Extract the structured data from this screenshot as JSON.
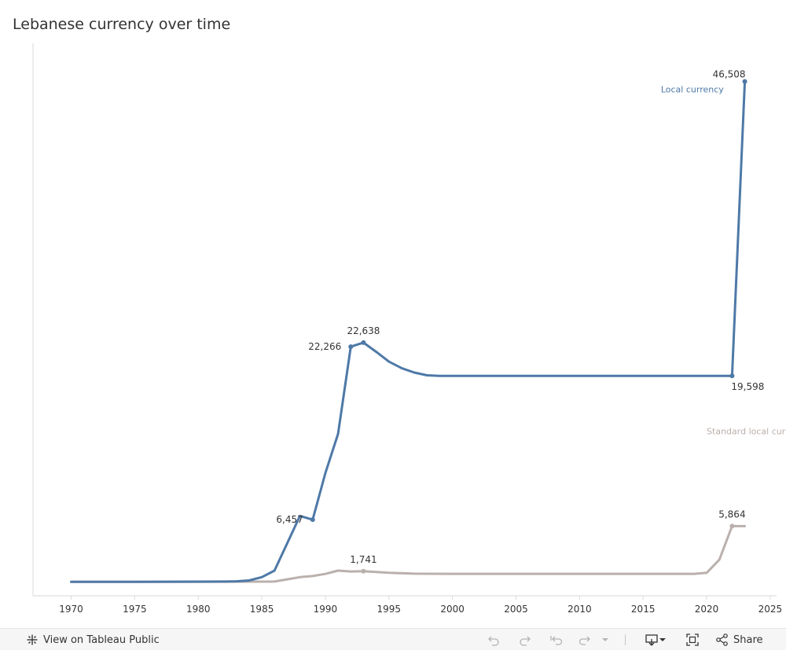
{
  "title": "Lebanese currency over time",
  "chart_data": {
    "type": "line",
    "title": "Lebanese currency over time",
    "xlabel": "",
    "ylabel": "",
    "xlim": [
      1967,
      2025.5
    ],
    "ylim": [
      -500,
      50000
    ],
    "x_ticks": [
      1970,
      1975,
      1980,
      1985,
      1990,
      1995,
      2000,
      2005,
      2010,
      2015,
      2020,
      2025
    ],
    "grid": false,
    "series": [
      {
        "name": "Local currency",
        "color": "#4e79a7",
        "label_position": [
          2016.4,
          45500
        ],
        "points": [
          [
            1970,
            780
          ],
          [
            1975,
            770
          ],
          [
            1980,
            790
          ],
          [
            1982,
            800
          ],
          [
            1983,
            820
          ],
          [
            1984,
            900
          ],
          [
            1985,
            1200
          ],
          [
            1986,
            1800
          ],
          [
            1987,
            4300
          ],
          [
            1988,
            6800
          ],
          [
            1989,
            6457
          ],
          [
            1990,
            10700
          ],
          [
            1991,
            14300
          ],
          [
            1992,
            22266
          ],
          [
            1993,
            22638
          ],
          [
            1994,
            21800
          ],
          [
            1995,
            20900
          ],
          [
            1996,
            20300
          ],
          [
            1997,
            19900
          ],
          [
            1998,
            19650
          ],
          [
            1999,
            19598
          ],
          [
            2005,
            19598
          ],
          [
            2010,
            19598
          ],
          [
            2015,
            19598
          ],
          [
            2020,
            19598
          ],
          [
            2022,
            19598
          ],
          [
            2023,
            46508
          ]
        ]
      },
      {
        "name": "Standard local currency",
        "color": "#bab0ac",
        "label_position": [
          2020,
          14250
        ],
        "points": [
          [
            1970,
            780
          ],
          [
            1975,
            775
          ],
          [
            1980,
            780
          ],
          [
            1985,
            790
          ],
          [
            1986,
            800
          ],
          [
            1987,
            1000
          ],
          [
            1988,
            1200
          ],
          [
            1989,
            1300
          ],
          [
            1990,
            1500
          ],
          [
            1991,
            1800
          ],
          [
            1992,
            1720
          ],
          [
            1993,
            1741
          ],
          [
            1994,
            1680
          ],
          [
            1995,
            1600
          ],
          [
            1996,
            1560
          ],
          [
            1997,
            1520
          ],
          [
            1998,
            1510
          ],
          [
            2000,
            1505
          ],
          [
            2005,
            1505
          ],
          [
            2010,
            1505
          ],
          [
            2015,
            1505
          ],
          [
            2019,
            1505
          ],
          [
            2020,
            1600
          ],
          [
            2021,
            2800
          ],
          [
            2022,
            5864
          ],
          [
            2023,
            5864
          ]
        ]
      }
    ],
    "annotations": [
      {
        "series": 0,
        "x": 1989,
        "y": 6457,
        "label": "6,457",
        "anchor": "left"
      },
      {
        "series": 0,
        "x": 1992,
        "y": 22266,
        "label": "22,266",
        "anchor": "left"
      },
      {
        "series": 0,
        "x": 1993,
        "y": 22638,
        "label": "22,638",
        "anchor": "above"
      },
      {
        "series": 0,
        "x": 2022,
        "y": 19598,
        "label": "19,598",
        "anchor": "below"
      },
      {
        "series": 0,
        "x": 2023,
        "y": 46508,
        "label": "46,508",
        "anchor": "above-left"
      },
      {
        "series": 1,
        "x": 1993,
        "y": 1741,
        "label": "1,741",
        "anchor": "above"
      },
      {
        "series": 1,
        "x": 2022,
        "y": 5864,
        "label": "5,864",
        "anchor": "above"
      }
    ]
  },
  "toolbar": {
    "view_label": "View on Tableau Public",
    "share_label": "Share",
    "icons": [
      "tableau-logo-icon",
      "undo-icon",
      "redo-icon",
      "revert-icon",
      "refresh-icon",
      "dropdown-icon",
      "download-icon",
      "fullscreen-icon",
      "share-icon"
    ]
  }
}
